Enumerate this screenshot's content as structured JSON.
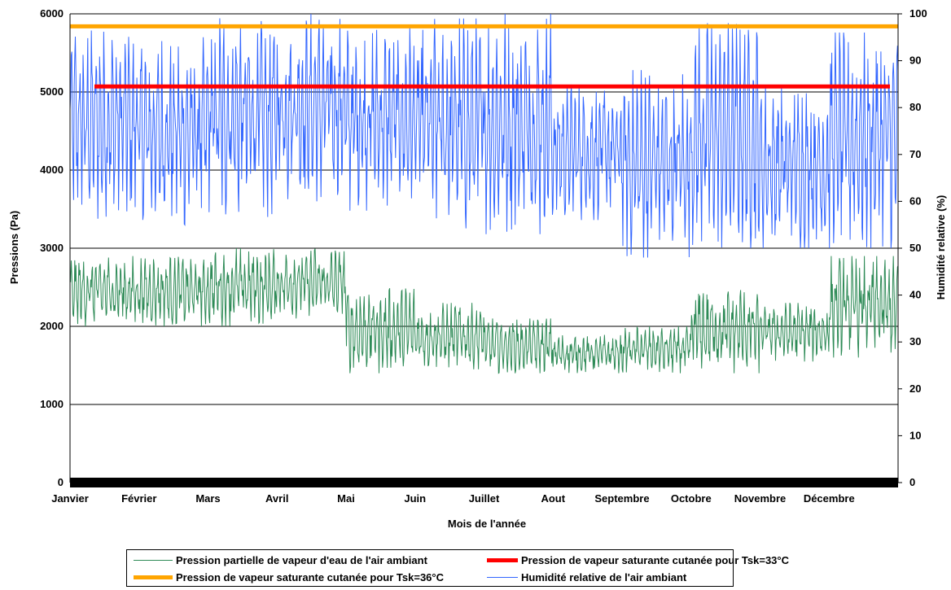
{
  "chart_data": {
    "type": "line",
    "xlabel": "Mois de l'année",
    "ylabel_left": "Pressions (Pa)",
    "ylabel_right": "Humidité relative (%)",
    "ylim_left": [
      0,
      6000
    ],
    "ylim_right": [
      0,
      100
    ],
    "yticks_left": [
      "0",
      "1000",
      "2000",
      "3000",
      "4000",
      "5000",
      "6000"
    ],
    "yticks_right": [
      "0",
      "10",
      "20",
      "30",
      "40",
      "50",
      "60",
      "70",
      "80",
      "90",
      "100"
    ],
    "x_categories": [
      "Janvier",
      "Février",
      "Mars",
      "Avril",
      "Mai",
      "Juin",
      "Juillet",
      "Aout",
      "Septembre",
      "Octobre",
      "Novembre",
      "Décembre"
    ],
    "grid": "horizontal",
    "legend_position": "bottom",
    "series": [
      {
        "name": "Pression partielle de vapeur d'eau de l'air ambiant",
        "axis": "left",
        "color": "#2e8b57",
        "monthly_min": [
          2000,
          2000,
          2000,
          2100,
          1400,
          1450,
          1400,
          1400,
          1400,
          1400,
          1550,
          1600
        ],
        "monthly_max": [
          2900,
          2900,
          3000,
          3000,
          2500,
          2300,
          2100,
          1900,
          2000,
          2500,
          2300,
          2900
        ]
      },
      {
        "name": "Pression de vapeur saturante cutanée pour Tsk=33°C",
        "axis": "left",
        "color": "#ff0000",
        "value": 5070
      },
      {
        "name": "Pression de vapeur saturante cutanée pour Tsk=36°C",
        "axis": "left",
        "color": "#ffa500",
        "value": 5840
      },
      {
        "name": "Humidité relative de l'air ambiant",
        "axis": "right",
        "color": "#3366ff",
        "monthly_min": [
          56,
          54,
          56,
          60,
          58,
          53,
          53,
          56,
          48,
          50,
          50,
          50
        ],
        "monthly_max": [
          97,
          95,
          100,
          100,
          97,
          99,
          100,
          85,
          88,
          98,
          85,
          96
        ]
      }
    ],
    "zero_band_color": "#000000"
  },
  "legend": {
    "items": [
      {
        "label": "Pression partielle de vapeur d'eau de l'air ambiant",
        "color": "#2e8b57",
        "thickness": 1
      },
      {
        "label": "Pression de vapeur saturante cutanée pour Tsk=33°C",
        "color": "#ff0000",
        "thickness": 5
      },
      {
        "label": "Pression de vapeur saturante cutanée pour Tsk=36°C",
        "color": "#ffa500",
        "thickness": 5
      },
      {
        "label": "Humidité relative de l'air ambiant",
        "color": "#3366ff",
        "thickness": 1
      }
    ]
  }
}
